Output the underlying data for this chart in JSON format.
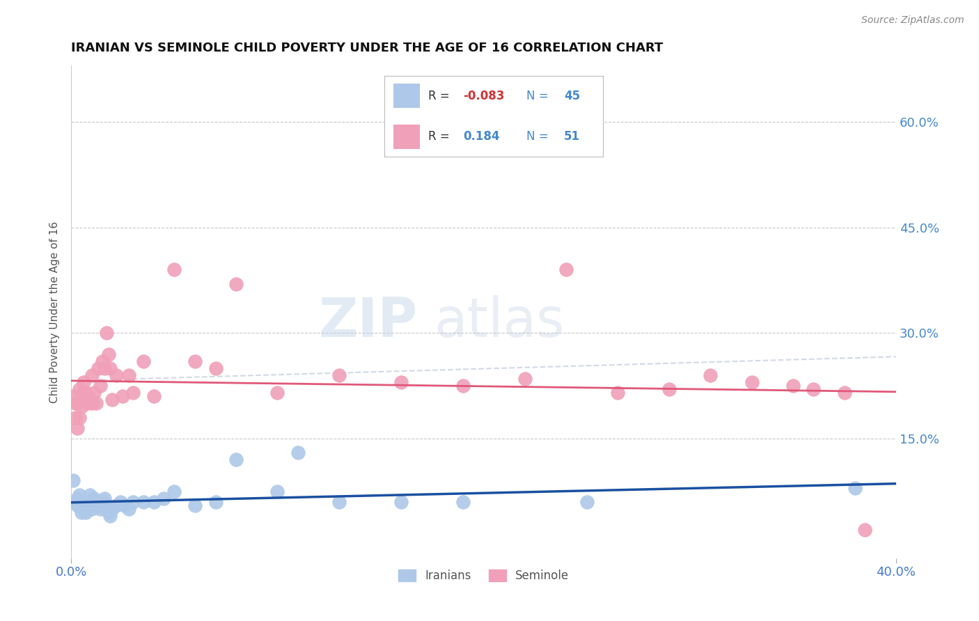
{
  "title": "IRANIAN VS SEMINOLE CHILD POVERTY UNDER THE AGE OF 16 CORRELATION CHART",
  "source": "Source: ZipAtlas.com",
  "ylabel": "Child Poverty Under the Age of 16",
  "xlim": [
    0.0,
    0.4
  ],
  "ylim": [
    -0.02,
    0.68
  ],
  "xticks": [
    0.0,
    0.4
  ],
  "xtick_labels": [
    "0.0%",
    "40.0%"
  ],
  "ytick_positions": [
    0.0,
    0.15,
    0.3,
    0.45,
    0.6
  ],
  "ytick_labels": [
    "",
    "15.0%",
    "30.0%",
    "45.0%",
    "60.0%"
  ],
  "grid_color": "#c8c8c8",
  "background_color": "#ffffff",
  "iranian_color": "#adc8e8",
  "seminole_color": "#f0a0b8",
  "iranian_line_color": "#1a50a0",
  "seminole_line_color": "#e05878",
  "seminole_line_dashed_color": "#c8c8d8",
  "r_iranian": -0.083,
  "n_iranian": 45,
  "r_seminole": 0.184,
  "n_seminole": 51,
  "iranians_x": [
    0.001,
    0.002,
    0.003,
    0.003,
    0.004,
    0.004,
    0.005,
    0.005,
    0.006,
    0.006,
    0.007,
    0.007,
    0.008,
    0.009,
    0.01,
    0.01,
    0.011,
    0.012,
    0.013,
    0.014,
    0.015,
    0.016,
    0.017,
    0.018,
    0.019,
    0.02,
    0.022,
    0.024,
    0.026,
    0.028,
    0.03,
    0.035,
    0.04,
    0.045,
    0.05,
    0.06,
    0.07,
    0.08,
    0.1,
    0.11,
    0.13,
    0.16,
    0.19,
    0.25,
    0.38
  ],
  "iranians_y": [
    0.09,
    0.06,
    0.055,
    0.065,
    0.07,
    0.06,
    0.055,
    0.045,
    0.06,
    0.05,
    0.045,
    0.06,
    0.055,
    0.07,
    0.05,
    0.06,
    0.065,
    0.06,
    0.055,
    0.05,
    0.06,
    0.065,
    0.055,
    0.045,
    0.04,
    0.05,
    0.055,
    0.06,
    0.055,
    0.05,
    0.06,
    0.06,
    0.06,
    0.065,
    0.075,
    0.055,
    0.06,
    0.12,
    0.075,
    0.13,
    0.06,
    0.06,
    0.06,
    0.06,
    0.08
  ],
  "seminole_x": [
    0.001,
    0.002,
    0.002,
    0.003,
    0.003,
    0.004,
    0.004,
    0.005,
    0.005,
    0.006,
    0.006,
    0.007,
    0.008,
    0.008,
    0.009,
    0.01,
    0.01,
    0.011,
    0.012,
    0.013,
    0.014,
    0.015,
    0.016,
    0.017,
    0.018,
    0.019,
    0.02,
    0.022,
    0.025,
    0.028,
    0.03,
    0.035,
    0.04,
    0.05,
    0.06,
    0.07,
    0.08,
    0.1,
    0.13,
    0.16,
    0.19,
    0.22,
    0.24,
    0.265,
    0.29,
    0.31,
    0.33,
    0.35,
    0.36,
    0.375,
    0.385
  ],
  "seminole_y": [
    0.21,
    0.18,
    0.2,
    0.165,
    0.2,
    0.18,
    0.22,
    0.195,
    0.21,
    0.215,
    0.23,
    0.215,
    0.2,
    0.21,
    0.205,
    0.24,
    0.2,
    0.215,
    0.2,
    0.25,
    0.225,
    0.26,
    0.25,
    0.3,
    0.27,
    0.25,
    0.205,
    0.24,
    0.21,
    0.24,
    0.215,
    0.26,
    0.21,
    0.39,
    0.26,
    0.25,
    0.37,
    0.215,
    0.24,
    0.23,
    0.225,
    0.235,
    0.39,
    0.215,
    0.22,
    0.24,
    0.23,
    0.225,
    0.22,
    0.215,
    0.02
  ]
}
